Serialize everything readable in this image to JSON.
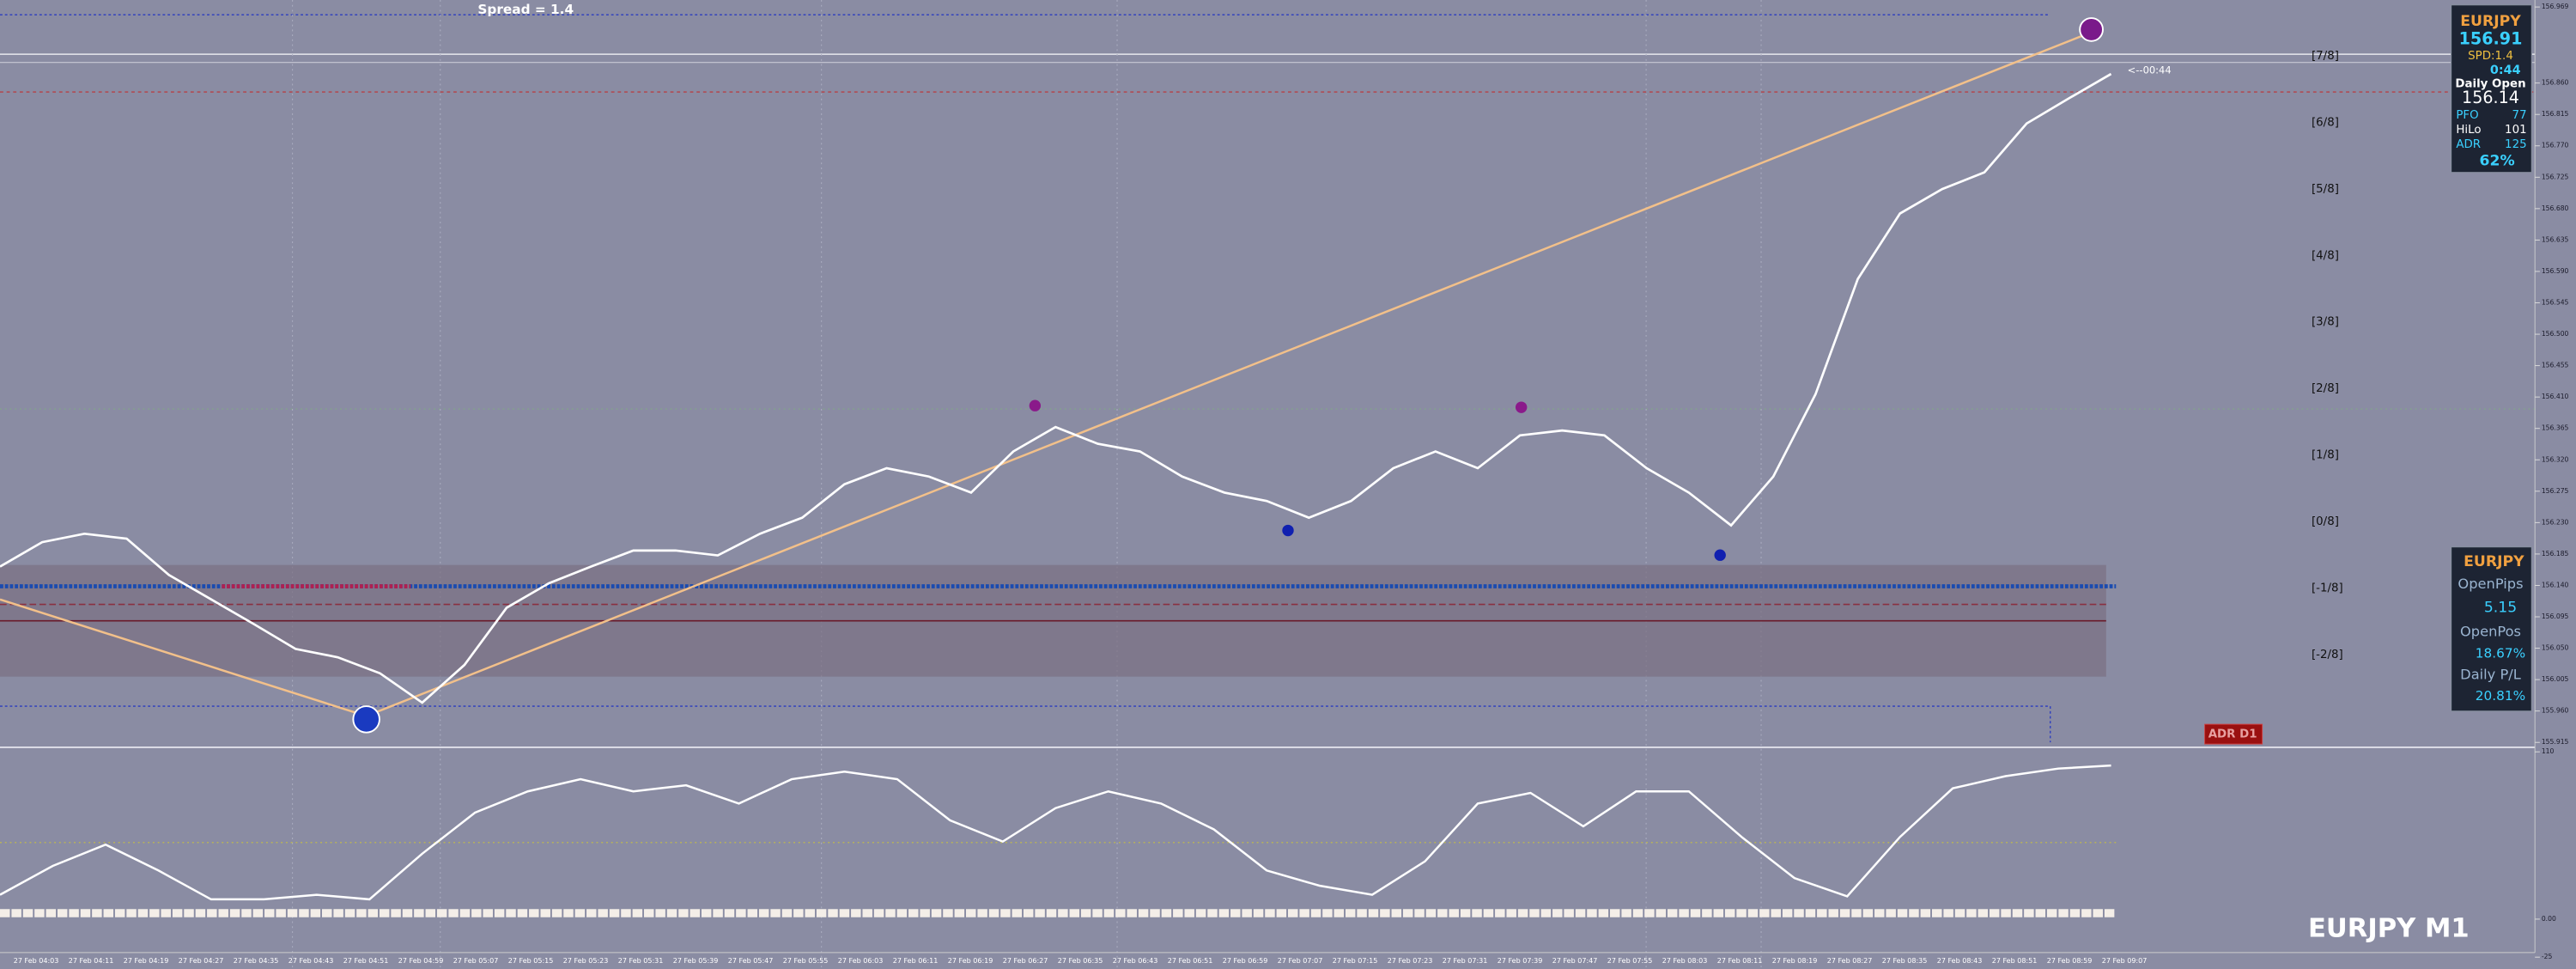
{
  "chart_data": [
    {
      "type": "line",
      "title": "EURJPY M1",
      "color": "#ffffff",
      "annotations": {
        "spread": "Spread = 1.4",
        "countdown": "<--00:44",
        "adr_badge": "ADR D1"
      },
      "murrey_labels": [
        "[7/8]",
        "[6/8]",
        "[5/8]",
        "[4/8]",
        "[3/8]",
        "[2/8]",
        "[1/8]",
        "[0/8]",
        "[-1/8]",
        "[-2/8]"
      ],
      "values": [
        156.167,
        156.202,
        156.214,
        156.207,
        156.155,
        156.12,
        156.085,
        156.049,
        156.037,
        156.014,
        155.972,
        156.026,
        156.108,
        156.143,
        156.167,
        156.19,
        156.19,
        156.183,
        156.214,
        156.237,
        156.285,
        156.308,
        156.296,
        156.273,
        156.332,
        156.367,
        156.343,
        156.332,
        156.296,
        156.273,
        156.261,
        156.237,
        156.261,
        156.308,
        156.332,
        156.308,
        156.355,
        156.362,
        156.355,
        156.308,
        156.273,
        156.226,
        156.296,
        156.414,
        156.579,
        156.673,
        156.708,
        156.732,
        156.802,
        156.838,
        156.873
      ],
      "ylim": [
        155.908,
        156.979
      ],
      "yticks": [
        156.969,
        {
          "value": 156.86,
          "label": "156.860"
        },
        156.815,
        {
          "value": 156.77,
          "label": "156.770"
        },
        156.725,
        {
          "value": 156.68,
          "label": "156.680"
        },
        156.635,
        {
          "value": 156.59,
          "label": "156.590"
        },
        156.545,
        {
          "value": 156.5,
          "label": "156.500"
        },
        156.455,
        {
          "value": 156.41,
          "label": "156.410"
        },
        156.365,
        {
          "value": 156.32,
          "label": "156.320"
        },
        156.275,
        {
          "value": 156.23,
          "label": "156.230"
        },
        156.185,
        {
          "value": 156.14,
          "label": "156.140"
        },
        156.095,
        {
          "value": 156.05,
          "label": "156.050"
        },
        156.005,
        {
          "value": 155.96,
          "label": "155.960"
        },
        155.915
      ],
      "time_labels": [
        "27 Feb 04:03",
        "27 Feb 04:11",
        "27 Feb 04:19",
        "27 Feb 04:27",
        "27 Feb 04:35",
        "27 Feb 04:43",
        "27 Feb 04:51",
        "27 Feb 04:59",
        "27 Feb 05:07",
        "27 Feb 05:15",
        "27 Feb 05:23",
        "27 Feb 05:31",
        "27 Feb 05:39",
        "27 Feb 05:47",
        "27 Feb 05:55",
        "27 Feb 06:03",
        "27 Feb 06:11",
        "27 Feb 06:19",
        "27 Feb 06:27",
        "27 Feb 06:35",
        "27 Feb 06:43",
        "27 Feb 06:51",
        "27 Feb 06:59",
        "27 Feb 07:07",
        "27 Feb 07:15",
        "27 Feb 07:23",
        "27 Feb 07:31",
        "27 Feb 07:39",
        "27 Feb 07:47",
        "27 Feb 07:55",
        "27 Feb 08:03",
        "27 Feb 08:11",
        "27 Feb 08:19",
        "27 Feb 08:27",
        "27 Feb 08:35",
        "27 Feb 08:43",
        "27 Feb 08:51",
        "27 Feb 08:59",
        "27 Feb 09:07"
      ]
    },
    {
      "type": "line",
      "color": "#ffffff",
      "values": [
        16,
        35,
        49,
        32,
        13,
        13,
        16,
        13,
        43,
        70,
        84,
        92,
        84,
        88,
        76,
        92,
        97,
        92,
        65,
        51,
        73,
        84,
        76,
        59,
        32,
        22,
        16,
        38,
        76,
        83,
        61,
        84,
        84,
        54,
        27,
        15,
        54,
        86,
        94,
        99,
        101
      ],
      "ylim": [
        -22,
        113
      ],
      "yticks": [
        110,
        {
          "value": 0,
          "label": "0.00"
        },
        -25
      ]
    }
  ],
  "info_panel": {
    "symbol": "EURJPY",
    "price": "156.91",
    "spread": "SPD:1.4",
    "timer": "0:44",
    "daily_open_label": "Daily Open",
    "daily_open": "156.14",
    "rows": [
      {
        "label": "PFO",
        "value": "77"
      },
      {
        "label": "HiLo",
        "value": "101"
      },
      {
        "label": "ADR",
        "value": "125"
      }
    ],
    "adr_pct": "62%"
  },
  "trade_panel": {
    "symbol": "EURJPY",
    "open_pips_label": "OpenPips",
    "open_pips": "5.15",
    "open_pos_label": "OpenPos",
    "open_pos": "18.67%",
    "daily_pl_label": "Daily P/L",
    "daily_pl": "20.81%"
  }
}
